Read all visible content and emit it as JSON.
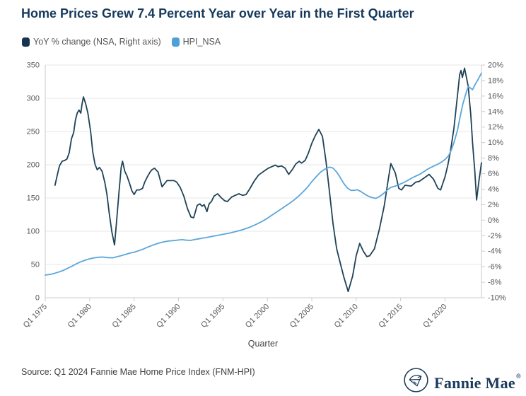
{
  "title": "Home Prices Grew 7.4 Percent Year over Year in the First Quarter",
  "legend": [
    {
      "label": "YoY % change (NSA, Right axis)",
      "color": "#163450"
    },
    {
      "label": "HPI_NSA",
      "color": "#4f9fd9"
    }
  ],
  "footer": {
    "source": "Source: Q1 2024 Fannie Mae Home Price Index (FNM-HPI)",
    "logo_text": "Fannie Mae",
    "logo_reg": "®",
    "logo_icon": "fannie-mae-house-flag-icon",
    "brand_color": "#1c3a5c"
  },
  "chart_data": {
    "type": "line",
    "title": "Home Prices Grew 7.4 Percent Year over Year in the First Quarter",
    "xlabel": "Quarter",
    "grid": true,
    "legend_position": "top-left",
    "x_range": [
      1975,
      2024.1
    ],
    "x_ticks": [
      {
        "label": "Q1 1975",
        "year": 1975
      },
      {
        "label": "Q1 1980",
        "year": 1980
      },
      {
        "label": "Q1 1985",
        "year": 1985
      },
      {
        "label": "Q1 1990",
        "year": 1990
      },
      {
        "label": "Q1 1995",
        "year": 1995
      },
      {
        "label": "Q1 2000",
        "year": 2000
      },
      {
        "label": "Q1 2005",
        "year": 2005
      },
      {
        "label": "Q1 2010",
        "year": 2010
      },
      {
        "label": "Q1 2015",
        "year": 2015
      },
      {
        "label": "Q1 2020",
        "year": 2020
      }
    ],
    "left_axis": {
      "min": 0,
      "max": 350,
      "step": 50,
      "suffix": ""
    },
    "right_axis": {
      "min": -10,
      "max": 20,
      "step": 2,
      "suffix": "%"
    },
    "series": [
      {
        "name": "YoY % change (NSA, Right axis)",
        "axis": "right",
        "color": "#1e4257",
        "points": [
          [
            1976.1,
            4.5
          ],
          [
            1976.35,
            5.8
          ],
          [
            1976.6,
            7.0
          ],
          [
            1976.9,
            7.6
          ],
          [
            1977.2,
            7.7
          ],
          [
            1977.45,
            7.9
          ],
          [
            1977.7,
            8.7
          ],
          [
            1977.95,
            10.5
          ],
          [
            1978.2,
            11.3
          ],
          [
            1978.4,
            12.9
          ],
          [
            1978.6,
            13.8
          ],
          [
            1978.8,
            14.2
          ],
          [
            1979.0,
            13.8
          ],
          [
            1979.15,
            15.0
          ],
          [
            1979.3,
            15.9
          ],
          [
            1979.55,
            15.0
          ],
          [
            1979.8,
            13.8
          ],
          [
            1980.1,
            11.5
          ],
          [
            1980.35,
            8.8
          ],
          [
            1980.6,
            7.2
          ],
          [
            1980.85,
            6.5
          ],
          [
            1981.1,
            6.8
          ],
          [
            1981.4,
            6.3
          ],
          [
            1981.7,
            4.9
          ],
          [
            1981.95,
            3.3
          ],
          [
            1982.2,
            0.9
          ],
          [
            1982.5,
            -1.5
          ],
          [
            1982.8,
            -3.2
          ],
          [
            1983.0,
            -0.6
          ],
          [
            1983.3,
            3.6
          ],
          [
            1983.55,
            6.8
          ],
          [
            1983.7,
            7.6
          ],
          [
            1983.95,
            6.3
          ],
          [
            1984.2,
            5.7
          ],
          [
            1984.5,
            4.7
          ],
          [
            1984.75,
            3.8
          ],
          [
            1985.0,
            3.3
          ],
          [
            1985.3,
            3.9
          ],
          [
            1985.6,
            3.9
          ],
          [
            1985.95,
            4.1
          ],
          [
            1986.2,
            4.9
          ],
          [
            1986.5,
            5.6
          ],
          [
            1986.8,
            6.2
          ],
          [
            1987.0,
            6.5
          ],
          [
            1987.3,
            6.7
          ],
          [
            1987.7,
            6.2
          ],
          [
            1988.15,
            4.3
          ],
          [
            1988.7,
            5.1
          ],
          [
            1989.1,
            5.1
          ],
          [
            1989.5,
            5.1
          ],
          [
            1989.8,
            4.9
          ],
          [
            1990.2,
            4.2
          ],
          [
            1990.6,
            3.1
          ],
          [
            1991.0,
            1.5
          ],
          [
            1991.4,
            0.4
          ],
          [
            1991.7,
            0.3
          ],
          [
            1992.1,
            1.9
          ],
          [
            1992.4,
            2.1
          ],
          [
            1992.65,
            1.8
          ],
          [
            1992.9,
            2.0
          ],
          [
            1993.2,
            1.1
          ],
          [
            1993.45,
            2.1
          ],
          [
            1993.7,
            2.4
          ],
          [
            1994.0,
            3.1
          ],
          [
            1994.4,
            3.4
          ],
          [
            1994.8,
            2.9
          ],
          [
            1995.2,
            2.5
          ],
          [
            1995.5,
            2.4
          ],
          [
            1996.0,
            3.0
          ],
          [
            1996.4,
            3.2
          ],
          [
            1996.8,
            3.4
          ],
          [
            1997.2,
            3.2
          ],
          [
            1997.6,
            3.3
          ],
          [
            1998.0,
            4.0
          ],
          [
            1998.5,
            5.0
          ],
          [
            1999.0,
            5.8
          ],
          [
            1999.6,
            6.3
          ],
          [
            2000.1,
            6.7
          ],
          [
            2000.5,
            6.9
          ],
          [
            2000.9,
            7.1
          ],
          [
            2001.2,
            6.9
          ],
          [
            2001.6,
            7.0
          ],
          [
            2002.0,
            6.7
          ],
          [
            2002.4,
            5.9
          ],
          [
            2002.8,
            6.5
          ],
          [
            2003.2,
            7.25
          ],
          [
            2003.6,
            7.6
          ],
          [
            2003.85,
            7.35
          ],
          [
            2004.25,
            7.7
          ],
          [
            2004.6,
            8.6
          ],
          [
            2005.0,
            9.9
          ],
          [
            2005.4,
            10.9
          ],
          [
            2005.8,
            11.7
          ],
          [
            2006.2,
            10.8
          ],
          [
            2006.6,
            7.6
          ],
          [
            2007.0,
            3.6
          ],
          [
            2007.4,
            -0.5
          ],
          [
            2007.8,
            -3.7
          ],
          [
            2008.2,
            -5.5
          ],
          [
            2008.6,
            -7.3
          ],
          [
            2009.1,
            -9.2
          ],
          [
            2009.6,
            -7.2
          ],
          [
            2010.0,
            -4.6
          ],
          [
            2010.4,
            -3.0
          ],
          [
            2010.8,
            -4.0
          ],
          [
            2011.2,
            -4.7
          ],
          [
            2011.5,
            -4.6
          ],
          [
            2012.05,
            -3.7
          ],
          [
            2012.6,
            -1.2
          ],
          [
            2013.15,
            1.8
          ],
          [
            2013.6,
            5.2
          ],
          [
            2013.9,
            7.3
          ],
          [
            2014.4,
            6.1
          ],
          [
            2014.8,
            4.1
          ],
          [
            2015.1,
            3.9
          ],
          [
            2015.5,
            4.5
          ],
          [
            2016.2,
            4.4
          ],
          [
            2016.7,
            4.9
          ],
          [
            2017.1,
            5.0
          ],
          [
            2017.6,
            5.4
          ],
          [
            2018.2,
            5.9
          ],
          [
            2018.7,
            5.3
          ],
          [
            2019.2,
            4.1
          ],
          [
            2019.5,
            3.9
          ],
          [
            2020.0,
            5.6
          ],
          [
            2020.3,
            7.0
          ],
          [
            2020.6,
            8.8
          ],
          [
            2021.0,
            11.8
          ],
          [
            2021.4,
            16.1
          ],
          [
            2021.65,
            18.8
          ],
          [
            2021.8,
            19.3
          ],
          [
            2021.95,
            18.4
          ],
          [
            2022.2,
            19.6
          ],
          [
            2022.6,
            17.3
          ],
          [
            2022.9,
            13.6
          ],
          [
            2023.1,
            10.0
          ],
          [
            2023.35,
            6.3
          ],
          [
            2023.55,
            2.6
          ],
          [
            2023.8,
            4.9
          ],
          [
            2024.1,
            7.4
          ]
        ]
      },
      {
        "name": "HPI_NSA",
        "axis": "left",
        "color": "#5ba6da",
        "points": [
          [
            1975.0,
            34
          ],
          [
            1975.5,
            35
          ],
          [
            1976.0,
            36.5
          ],
          [
            1976.5,
            38.5
          ],
          [
            1977.0,
            41
          ],
          [
            1977.5,
            44
          ],
          [
            1978.0,
            47.5
          ],
          [
            1978.5,
            51
          ],
          [
            1979.0,
            54
          ],
          [
            1979.5,
            56.5
          ],
          [
            1980.0,
            58.5
          ],
          [
            1980.5,
            60
          ],
          [
            1981.0,
            60.8
          ],
          [
            1981.5,
            61.2
          ],
          [
            1982.0,
            60.3
          ],
          [
            1982.6,
            60.0
          ],
          [
            1983.0,
            61.5
          ],
          [
            1983.5,
            63
          ],
          [
            1984.0,
            65
          ],
          [
            1984.5,
            67
          ],
          [
            1985.0,
            68.5
          ],
          [
            1985.5,
            70.5
          ],
          [
            1986.0,
            73
          ],
          [
            1986.5,
            76
          ],
          [
            1987.0,
            78.5
          ],
          [
            1987.5,
            81
          ],
          [
            1988.0,
            83
          ],
          [
            1988.5,
            84.5
          ],
          [
            1989.0,
            85.5
          ],
          [
            1989.5,
            86
          ],
          [
            1990.0,
            86.8
          ],
          [
            1990.4,
            87.3
          ],
          [
            1990.9,
            86.5
          ],
          [
            1991.4,
            86.3
          ],
          [
            1992.0,
            88
          ],
          [
            1992.5,
            89
          ],
          [
            1993.0,
            90.3
          ],
          [
            1993.5,
            91.5
          ],
          [
            1994.0,
            92.8
          ],
          [
            1994.5,
            94
          ],
          [
            1995.0,
            95.3
          ],
          [
            1995.5,
            96.5
          ],
          [
            1996.0,
            98
          ],
          [
            1996.5,
            99.7
          ],
          [
            1997.0,
            101.5
          ],
          [
            1997.5,
            103.6
          ],
          [
            1998.0,
            106
          ],
          [
            1998.5,
            108.8
          ],
          [
            1999.0,
            112
          ],
          [
            1999.5,
            115.5
          ],
          [
            2000.0,
            119.5
          ],
          [
            2000.5,
            124
          ],
          [
            2001.0,
            128.5
          ],
          [
            2001.5,
            133
          ],
          [
            2002.0,
            137.5
          ],
          [
            2002.5,
            142
          ],
          [
            2003.0,
            147
          ],
          [
            2003.5,
            152.5
          ],
          [
            2004.0,
            159
          ],
          [
            2004.5,
            166
          ],
          [
            2005.0,
            174.5
          ],
          [
            2005.5,
            182
          ],
          [
            2006.0,
            189
          ],
          [
            2006.5,
            193.5
          ],
          [
            2007.0,
            196.5
          ],
          [
            2007.4,
            195
          ],
          [
            2007.8,
            189
          ],
          [
            2008.2,
            181
          ],
          [
            2008.6,
            172
          ],
          [
            2009.0,
            165
          ],
          [
            2009.4,
            161.5
          ],
          [
            2009.8,
            161.5
          ],
          [
            2010.1,
            162.5
          ],
          [
            2010.5,
            160
          ],
          [
            2011.0,
            155.5
          ],
          [
            2011.4,
            152.5
          ],
          [
            2011.8,
            150.5
          ],
          [
            2012.2,
            149.5
          ],
          [
            2012.6,
            152
          ],
          [
            2013.1,
            157
          ],
          [
            2013.5,
            162
          ],
          [
            2013.9,
            166
          ],
          [
            2014.4,
            168
          ],
          [
            2014.8,
            170
          ],
          [
            2015.2,
            172.5
          ],
          [
            2015.6,
            175
          ],
          [
            2016.0,
            178
          ],
          [
            2016.4,
            181
          ],
          [
            2016.8,
            183.5
          ],
          [
            2017.2,
            186
          ],
          [
            2017.6,
            189.5
          ],
          [
            2018.0,
            193
          ],
          [
            2018.4,
            196
          ],
          [
            2018.8,
            198.5
          ],
          [
            2019.2,
            201
          ],
          [
            2019.6,
            204
          ],
          [
            2020.0,
            208
          ],
          [
            2020.4,
            213.5
          ],
          [
            2020.7,
            222
          ],
          [
            2021.0,
            233
          ],
          [
            2021.4,
            252
          ],
          [
            2021.7,
            272
          ],
          [
            2022.0,
            291
          ],
          [
            2022.3,
            305
          ],
          [
            2022.6,
            318
          ],
          [
            2022.8,
            316
          ],
          [
            2023.1,
            313
          ],
          [
            2023.4,
            321
          ],
          [
            2023.7,
            328
          ],
          [
            2024.1,
            338
          ]
        ]
      }
    ]
  }
}
